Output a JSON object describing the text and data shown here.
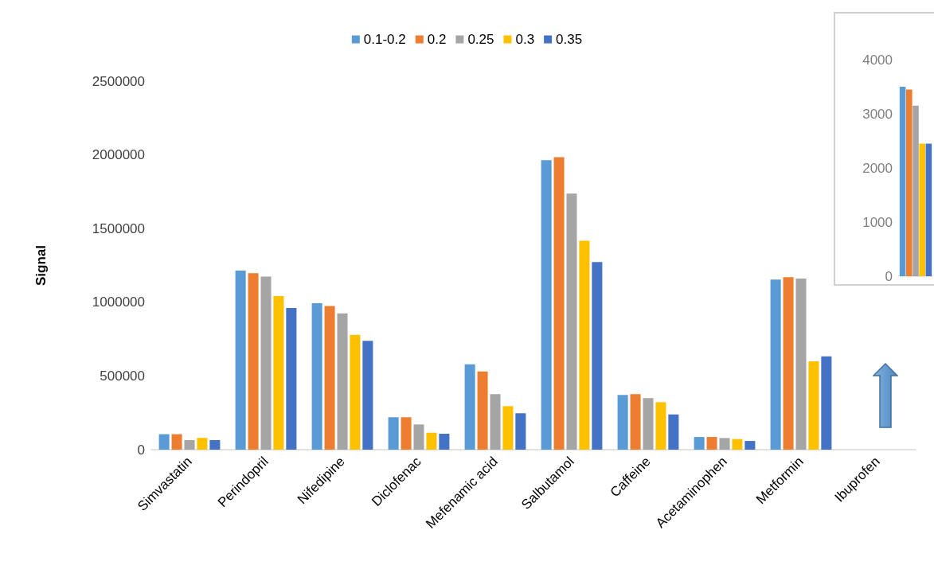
{
  "chart_data": [
    {
      "type": "bar",
      "ylabel": "Signal",
      "categories": [
        "Simvastatin",
        "Perindopril",
        "Nifedipine",
        "Diclofenac",
        "Mefenamic acid",
        "Salbutamol",
        "Caffeine",
        "Acetaminophen",
        "Metformin",
        "Ibuprofen"
      ],
      "series": [
        {
          "name": "0.1-0.2",
          "color": "#5b9bd5",
          "values": [
            105000,
            1215000,
            993000,
            220000,
            579000,
            1964000,
            371000,
            86000,
            1154000,
            null
          ]
        },
        {
          "name": "0.2",
          "color": "#ed7d31",
          "values": [
            105000,
            1197000,
            974000,
            220000,
            531000,
            1985000,
            376000,
            86000,
            1170000,
            null
          ]
        },
        {
          "name": "0.25",
          "color": "#a5a5a5",
          "values": [
            65000,
            1175000,
            925000,
            171000,
            376000,
            1737000,
            349000,
            79000,
            1161000,
            null
          ]
        },
        {
          "name": "0.3",
          "color": "#ffc000",
          "values": [
            80000,
            1042000,
            779000,
            115000,
            295000,
            1418000,
            322000,
            72000,
            599000,
            null
          ]
        },
        {
          "name": "0.35",
          "color": "#4472c4",
          "values": [
            65000,
            961000,
            738000,
            108000,
            247000,
            1273000,
            239000,
            59000,
            633000,
            null
          ]
        }
      ],
      "ylim": [
        0,
        2500000
      ],
      "yticks": [
        0,
        500000,
        1000000,
        1500000,
        2000000,
        2500000
      ],
      "grid": false,
      "legend": "top"
    },
    {
      "type": "bar",
      "categories": [
        null
      ],
      "series": [
        {
          "color": "#5b9bd5",
          "values": [
            3500
          ]
        },
        {
          "color": "#ed7d31",
          "values": [
            3450
          ]
        },
        {
          "color": "#a5a5a5",
          "values": [
            3150
          ]
        },
        {
          "color": "#ffc000",
          "values": [
            2450
          ]
        },
        {
          "color": "#4472c4",
          "values": [
            2450
          ]
        }
      ],
      "ylim": [
        0,
        4000
      ],
      "yticks": [
        0,
        1000,
        2000,
        3000,
        4000
      ],
      "grid": false,
      "tick_labels": "y"
    }
  ]
}
